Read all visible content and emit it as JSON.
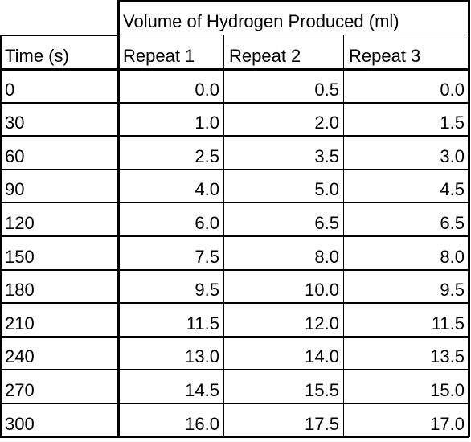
{
  "table": {
    "group_header": "Volume of Hydrogen Produced (ml)",
    "columns": [
      "Time (s)",
      "Repeat 1",
      "Repeat 2",
      "Repeat 3"
    ],
    "rows": [
      [
        "0",
        "0.0",
        "0.5",
        "0.0"
      ],
      [
        "30",
        "1.0",
        "2.0",
        "1.5"
      ],
      [
        "60",
        "2.5",
        "3.5",
        "3.0"
      ],
      [
        "90",
        "4.0",
        "5.0",
        "4.5"
      ],
      [
        "120",
        "6.0",
        "6.5",
        "6.5"
      ],
      [
        "150",
        "7.5",
        "8.0",
        "8.0"
      ],
      [
        "180",
        "9.5",
        "10.0",
        "9.5"
      ],
      [
        "210",
        "11.5",
        "12.0",
        "11.5"
      ],
      [
        "240",
        "13.0",
        "14.0",
        "13.5"
      ],
      [
        "270",
        "14.5",
        "15.5",
        "15.0"
      ],
      [
        "300",
        "16.0",
        "17.5",
        "17.0"
      ]
    ]
  }
}
